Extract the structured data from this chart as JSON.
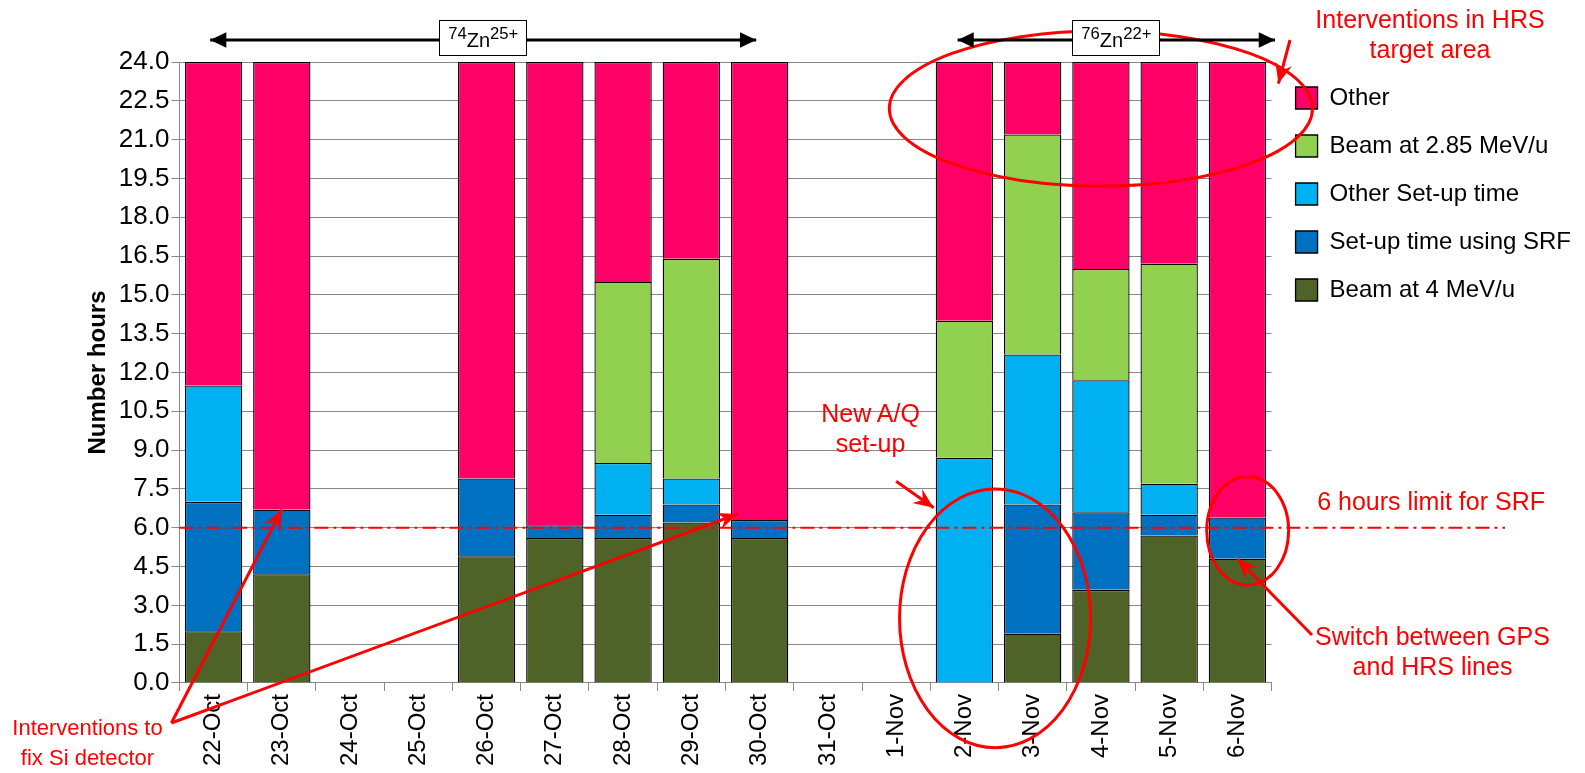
{
  "chart_data": {
    "type": "bar",
    "stacked": true,
    "ylabel": "Number hours",
    "categories": [
      "22-Oct",
      "23-Oct",
      "24-Oct",
      "25-Oct",
      "26-Oct",
      "27-Oct",
      "28-Oct",
      "29-Oct",
      "30-Oct",
      "31-Oct",
      "1-Nov",
      "2-Nov",
      "3-Nov",
      "4-Nov",
      "5-Nov",
      "6-Nov"
    ],
    "series": [
      {
        "name": "Beam at 4 MeV/u",
        "color": "#4f6228",
        "values": [
          2.0,
          4.2,
          null,
          null,
          4.9,
          5.6,
          5.6,
          6.2,
          5.6,
          null,
          null,
          null,
          1.9,
          3.6,
          5.7,
          4.8
        ]
      },
      {
        "name": "Set-up time using SRF",
        "color": "#0070c0",
        "values": [
          5.0,
          2.5,
          null,
          null,
          3.0,
          0.5,
          0.9,
          0.7,
          0.7,
          null,
          null,
          null,
          5.0,
          3.0,
          0.8,
          1.6
        ]
      },
      {
        "name": "Other Set-up time",
        "color": "#00b0f0",
        "values": [
          4.5,
          null,
          null,
          null,
          null,
          null,
          2.0,
          1.0,
          null,
          null,
          null,
          8.7,
          5.8,
          5.1,
          1.2,
          null
        ]
      },
      {
        "name": "Beam at 2.85 MeV/u",
        "color": "#92d050",
        "values": [
          null,
          null,
          null,
          null,
          null,
          null,
          7.0,
          8.5,
          null,
          null,
          null,
          5.3,
          8.5,
          4.3,
          8.5,
          null
        ]
      },
      {
        "name": "Other",
        "color": "#ff0066",
        "values": [
          12.5,
          17.3,
          null,
          null,
          16.1,
          17.9,
          8.5,
          7.6,
          17.7,
          null,
          null,
          10.0,
          2.8,
          8.0,
          7.8,
          17.6
        ]
      }
    ],
    "ylim": [
      0,
      24
    ],
    "yticks": [
      {
        "value": 0,
        "label": "0.0"
      },
      1.5,
      {
        "value": 3,
        "label": "3.0"
      },
      4.5,
      {
        "value": 6,
        "label": "6.0"
      },
      7.5,
      {
        "value": 9,
        "label": "9.0"
      },
      10.5,
      {
        "value": 12,
        "label": "12.0"
      },
      13.5,
      {
        "value": 15,
        "label": "15.0"
      },
      16.5,
      {
        "value": 18,
        "label": "18.0"
      },
      19.5,
      {
        "value": 21,
        "label": "21.0"
      },
      22.5,
      {
        "value": 24,
        "label": "24.0"
      }
    ],
    "grid": "y",
    "legend": "right",
    "ref_lines": [
      {
        "axis": "y",
        "value": 6,
        "label": "6 hours limit for SRF",
        "color": "#ff0000",
        "line_style": "dashdot"
      }
    ],
    "annotations": [
      "Interventions in HRS target area",
      "New A/Q set-up",
      {
        "text": "Switch between GPS and HRS lines",
        "x": "6-Nov",
        "y": 4.8
      },
      {
        "text": "Interventions to fix Si detector",
        "x": "23-Oct",
        "y": 6.7
      },
      "$^{74}$Zn$^{25+}$",
      "$^{76}$Zn$^{22+}$"
    ]
  }
}
